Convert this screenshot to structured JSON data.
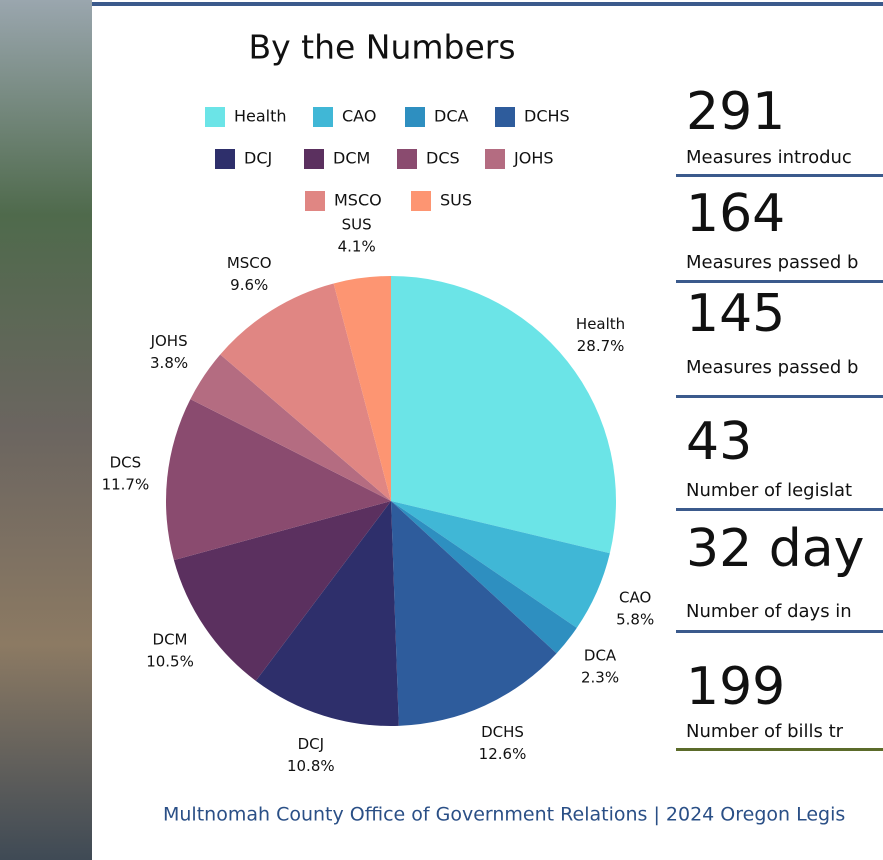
{
  "chart_data": {
    "type": "pie",
    "title": "By the Numbers",
    "categories": [
      "Health",
      "CAO",
      "DCA",
      "DCHS",
      "DCJ",
      "DCM",
      "DCS",
      "JOHS",
      "MSCO",
      "SUS"
    ],
    "values": [
      28.7,
      5.8,
      2.3,
      12.6,
      10.8,
      10.5,
      11.7,
      3.8,
      9.6,
      4.1
    ],
    "value_labels": [
      "28.7%",
      "5.8%",
      "2.3%",
      "12.6%",
      "10.8%",
      "10.5%",
      "11.7%",
      "3.8%",
      "9.6%",
      "4.1%"
    ],
    "colors": [
      "#6be4e7",
      "#40b7d6",
      "#2e8fc0",
      "#2e5c9c",
      "#2e2f6b",
      "#5b305f",
      "#8a4b6f",
      "#b46c81",
      "#e08683",
      "#fd9572"
    ]
  },
  "stats": [
    {
      "number": "291",
      "label": "Measures introduc"
    },
    {
      "number": "164",
      "label": "Measures passed b"
    },
    {
      "number": "145",
      "label": "Measures passed b"
    },
    {
      "number": "43",
      "label": "Number of legislat"
    },
    {
      "number": "32 day",
      "label": "Number of days in"
    },
    {
      "number": "199",
      "label": "Number of bills tr"
    }
  ],
  "footer": "Multnomah County Office of Government Relations |  2024 Oregon Legis"
}
